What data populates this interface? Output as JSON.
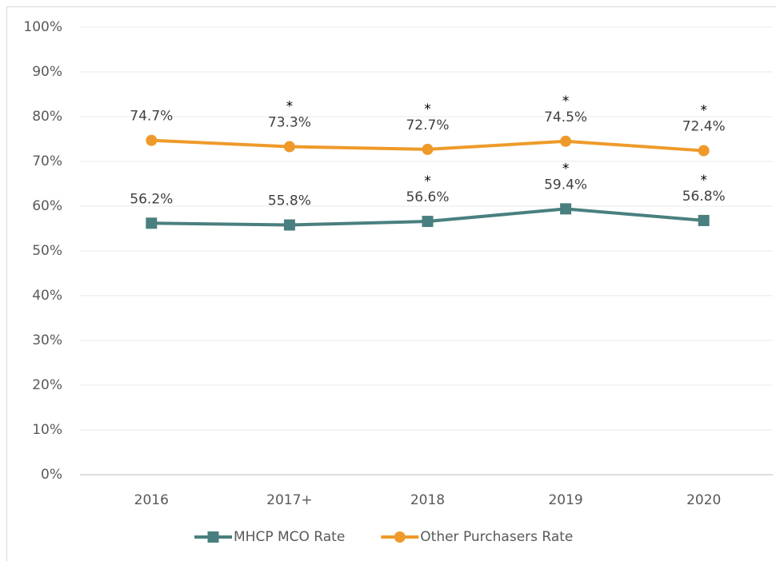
{
  "chart_data": {
    "type": "line",
    "categories": [
      "2016",
      "2017+",
      "2018",
      "2019",
      "2020"
    ],
    "series": [
      {
        "name": "MHCP MCO Rate",
        "color": "#4a7f7f",
        "marker": "square",
        "values": [
          56.2,
          55.8,
          56.6,
          59.4,
          56.8
        ],
        "value_labels": [
          "56.2%",
          "55.8%",
          "56.6%",
          "59.4%",
          "56.8%"
        ],
        "value_notes": [
          null,
          null,
          "*",
          "*",
          "*"
        ]
      },
      {
        "name": "Other Purchasers Rate",
        "color": "#ee9a2a",
        "marker": "circle",
        "values": [
          74.7,
          73.3,
          72.7,
          74.5,
          72.4
        ],
        "value_labels": [
          "74.7%",
          "73.3%",
          "72.7%",
          "74.5%",
          "72.4%"
        ],
        "value_notes": [
          null,
          "*",
          "*",
          "*",
          "*"
        ]
      }
    ],
    "ylim": [
      0,
      100
    ],
    "yticks": [
      {
        "value": 0,
        "label": "0%"
      },
      {
        "value": 10,
        "label": "10%"
      },
      {
        "value": 20,
        "label": "20%"
      },
      {
        "value": 30,
        "label": "30%"
      },
      {
        "value": 40,
        "label": "40%"
      },
      {
        "value": 50,
        "label": "50%"
      },
      {
        "value": 60,
        "label": "60%"
      },
      {
        "value": 70,
        "label": "70%"
      },
      {
        "value": 80,
        "label": "80%"
      },
      {
        "value": 90,
        "label": "90%"
      },
      {
        "value": 100,
        "label": "100%"
      }
    ],
    "grid": true,
    "legend": "bottom"
  }
}
